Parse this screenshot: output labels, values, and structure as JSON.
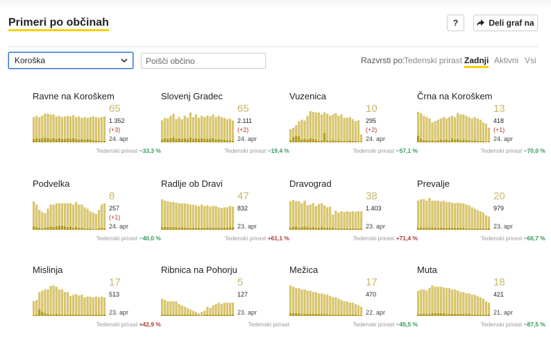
{
  "page": {
    "title": "Primeri po občinah"
  },
  "toolbar": {
    "help_label": "?",
    "share_label": "Deli graf na"
  },
  "filters": {
    "region_value": "Koroška",
    "search_placeholder": "Poišči občino",
    "sort_label": "Razvrsti po:",
    "sort_options": [
      "Tedenski prirast",
      "Zadnji",
      "Aktivni",
      "Vsi"
    ],
    "sort_active": "Zadnji"
  },
  "colors": {
    "bar": "#d8c56f",
    "bar_recent": "#b09a22",
    "accent": "#f5d200",
    "negative": "#2e9a55",
    "positive": "#b03a2e"
  },
  "growth_label": "Tedenski prirast",
  "cards": [
    {
      "name": "Ravne na Koroškem",
      "active": "65",
      "total": "1.352",
      "delta": "(+3)",
      "date": "24. apr",
      "growth": "−33,3 %",
      "trend": "neg",
      "bars": [
        38,
        40,
        38,
        40,
        43,
        43,
        42,
        42,
        39,
        40,
        38,
        39,
        40,
        39,
        41,
        38,
        39,
        37,
        38,
        37,
        38,
        39,
        38,
        37,
        38,
        39
      ],
      "recent": [
        5,
        6,
        5,
        6,
        7,
        6,
        5,
        6,
        5,
        6,
        5,
        5,
        6,
        5,
        6,
        5,
        4,
        5,
        4,
        5,
        4,
        3,
        3,
        2,
        2,
        2
      ]
    },
    {
      "name": "Slovenj Gradec",
      "active": "65",
      "total": "2.111",
      "delta": "(+2)",
      "date": "24. apr",
      "growth": "−19,4 %",
      "trend": "neg",
      "bars": [
        33,
        37,
        36,
        40,
        43,
        35,
        38,
        35,
        40,
        37,
        45,
        38,
        42,
        37,
        40,
        38,
        40,
        39,
        42,
        38,
        40,
        38,
        37,
        35,
        36,
        33
      ],
      "recent": [
        4,
        6,
        5,
        6,
        7,
        5,
        6,
        5,
        6,
        5,
        7,
        5,
        6,
        5,
        6,
        5,
        5,
        5,
        6,
        4,
        5,
        4,
        4,
        3,
        3,
        2
      ]
    },
    {
      "name": "Vuzenica",
      "active": "10",
      "total": "295",
      "delta": "(+2)",
      "date": "24. apr",
      "growth": "−57,1 %",
      "trend": "neg",
      "bars": [
        20,
        22,
        26,
        32,
        34,
        33,
        40,
        47,
        46,
        45,
        45,
        42,
        45,
        43,
        40,
        42,
        44,
        40,
        42,
        37,
        37,
        38,
        35,
        32,
        33,
        12
      ],
      "recent": [
        3,
        8,
        10,
        9,
        4,
        5,
        4,
        6,
        5,
        4,
        2,
        3,
        14,
        3,
        2,
        3,
        2,
        3,
        2,
        2,
        2,
        3,
        2,
        2,
        1,
        1
      ]
    },
    {
      "name": "Črna na Koroškem",
      "active": "13",
      "total": "418",
      "delta": "(+1)",
      "date": "24. apr",
      "growth": "−70,0 %",
      "trend": "neg",
      "bars": [
        46,
        44,
        40,
        38,
        36,
        30,
        32,
        34,
        36,
        38,
        36,
        38,
        40,
        38,
        44,
        42,
        42,
        40,
        38,
        36,
        38,
        36,
        34,
        30,
        28,
        22
      ],
      "recent": [
        10,
        5,
        3,
        3,
        2,
        3,
        2,
        3,
        4,
        3,
        4,
        3,
        6,
        4,
        5,
        3,
        4,
        3,
        3,
        2,
        3,
        2,
        2,
        2,
        1,
        1
      ]
    },
    {
      "name": "Podvelka",
      "active": "8",
      "total": "257",
      "delta": "(+1)",
      "date": "24. apr",
      "growth": "−40,0 %",
      "trend": "neg",
      "bars": [
        43,
        38,
        30,
        27,
        25,
        32,
        38,
        38,
        40,
        40,
        40,
        40,
        40,
        40,
        38,
        42,
        38,
        38,
        34,
        32,
        28,
        26,
        24,
        30,
        38,
        40
      ],
      "recent": [
        5,
        4,
        3,
        2,
        3,
        4,
        5,
        4,
        5,
        6,
        6,
        5,
        4,
        5,
        3,
        4,
        3,
        3,
        2,
        2,
        2,
        1,
        1,
        2,
        3,
        2
      ]
    },
    {
      "name": "Radlje ob Dravi",
      "active": "47",
      "total": "832",
      "delta": "",
      "date": "23. apr",
      "growth": "+61,1 %",
      "trend": "pos",
      "bars": [
        46,
        44,
        43,
        42,
        42,
        41,
        40,
        40,
        40,
        39,
        38,
        38,
        37,
        36,
        38,
        36,
        37,
        35,
        36,
        36,
        34,
        33,
        34,
        34,
        36,
        35
      ],
      "recent": [
        4,
        4,
        4,
        4,
        4,
        4,
        3,
        4,
        3,
        3,
        3,
        3,
        3,
        3,
        3,
        3,
        3,
        3,
        3,
        3,
        3,
        3,
        3,
        3,
        4,
        4
      ]
    },
    {
      "name": "Dravograd",
      "active": "38",
      "total": "1.403",
      "delta": "",
      "date": "23. apr",
      "growth": "+71,4 %",
      "trend": "pos",
      "bars": [
        43,
        45,
        43,
        43,
        40,
        44,
        37,
        38,
        40,
        36,
        39,
        40,
        37,
        34,
        35,
        23,
        29,
        26,
        28,
        27,
        28,
        27,
        28,
        27,
        28,
        28
      ],
      "recent": [
        3,
        4,
        5,
        3,
        4,
        5,
        4,
        3,
        4,
        3,
        3,
        4,
        3,
        3,
        3,
        3,
        2,
        2,
        2,
        2,
        2,
        2,
        2,
        2,
        2,
        2
      ]
    },
    {
      "name": "Prevalje",
      "active": "20",
      "total": "979",
      "delta": "",
      "date": "23. apr",
      "growth": "−66,7 %",
      "trend": "neg",
      "bars": [
        44,
        46,
        46,
        44,
        48,
        44,
        44,
        44,
        43,
        44,
        42,
        42,
        41,
        40,
        41,
        40,
        40,
        38,
        37,
        34,
        32,
        30,
        28,
        26,
        22,
        20
      ],
      "recent": [
        3,
        3,
        3,
        3,
        3,
        3,
        3,
        3,
        3,
        3,
        3,
        3,
        3,
        3,
        3,
        3,
        3,
        2,
        2,
        2,
        2,
        2,
        2,
        2,
        2,
        2
      ]
    },
    {
      "name": "Mislinja",
      "active": "17",
      "total": "513",
      "delta": "",
      "date": "23. apr",
      "growth": "+42,9 %",
      "trend": "pos",
      "bars": [
        22,
        24,
        36,
        38,
        40,
        40,
        45,
        46,
        44,
        40,
        40,
        36,
        36,
        30,
        32,
        33,
        31,
        32,
        28,
        29,
        29,
        28,
        29,
        28,
        29,
        28
      ],
      "recent": [
        1,
        2,
        10,
        6,
        4,
        3,
        2,
        2,
        3,
        2,
        2,
        2,
        2,
        2,
        2,
        2,
        2,
        2,
        2,
        2,
        2,
        2,
        2,
        2,
        2,
        2
      ]
    },
    {
      "name": "Ribnica na Pohorju",
      "active": "5",
      "total": "127",
      "delta": "",
      "date": "23. apr",
      "growth": "",
      "trend": "neg",
      "bars": [
        26,
        24,
        22,
        22,
        22,
        22,
        18,
        16,
        14,
        12,
        10,
        8,
        6,
        4,
        6,
        8,
        14,
        12,
        16,
        18,
        20,
        18,
        20,
        20,
        20,
        20
      ],
      "recent": [
        2,
        2,
        2,
        2,
        2,
        2,
        2,
        2,
        2,
        2,
        2,
        2,
        2,
        1,
        1,
        2,
        2,
        2,
        2,
        2,
        2,
        2,
        2,
        2,
        2,
        2
      ]
    },
    {
      "name": "Mežica",
      "active": "17",
      "total": "470",
      "delta": "",
      "date": "22. apr",
      "growth": "−45,5 %",
      "trend": "neg",
      "bars": [
        46,
        44,
        42,
        42,
        40,
        40,
        38,
        38,
        36,
        36,
        34,
        34,
        33,
        32,
        30,
        28,
        28,
        26,
        24,
        22,
        22,
        20,
        20,
        18,
        16,
        14
      ],
      "recent": [
        4,
        4,
        4,
        4,
        3,
        3,
        3,
        3,
        3,
        3,
        3,
        3,
        3,
        2,
        2,
        2,
        2,
        2,
        2,
        2,
        2,
        2,
        2,
        2,
        1,
        1
      ]
    },
    {
      "name": "Muta",
      "active": "18",
      "total": "421",
      "delta": "",
      "date": "21. apr",
      "growth": "−87,5 %",
      "trend": "neg",
      "bars": [
        38,
        40,
        40,
        38,
        42,
        46,
        44,
        44,
        44,
        43,
        42,
        42,
        40,
        40,
        38,
        36,
        36,
        34,
        34,
        32,
        32,
        30,
        28,
        26,
        22,
        20
      ],
      "recent": [
        3,
        3,
        3,
        3,
        3,
        4,
        4,
        4,
        4,
        4,
        3,
        3,
        3,
        3,
        3,
        3,
        3,
        3,
        3,
        2,
        2,
        2,
        2,
        2,
        2,
        2
      ]
    }
  ]
}
